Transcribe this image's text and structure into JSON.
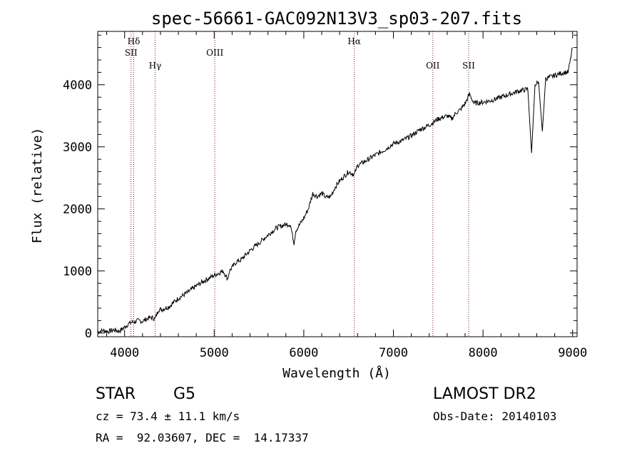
{
  "chart_data": {
    "type": "line",
    "title": "spec-56661-GAC092N13V3_sp03-207.fits",
    "xlabel": "Wavelength (Å)",
    "ylabel": "Flux (relative)",
    "xlim": [
      3700,
      9050
    ],
    "ylim": [
      -60,
      4860
    ],
    "xticks": [
      4000,
      5000,
      6000,
      7000,
      8000,
      9000
    ],
    "yticks": [
      0,
      1000,
      2000,
      3000,
      4000
    ],
    "grid": false,
    "line_color": "#000000",
    "marker_color": "#8b1a1a",
    "spectral_lines": [
      {
        "label": "Hδ",
        "x": 4102,
        "level": 1
      },
      {
        "label": "SII",
        "x": 4072,
        "level": 2
      },
      {
        "label": "Hγ",
        "x": 4340,
        "level": 3
      },
      {
        "label": "OIII",
        "x": 5007,
        "level": 2
      },
      {
        "label": "Hα",
        "x": 6563,
        "level": 1
      },
      {
        "label": "OII",
        "x": 7440,
        "level": 3
      },
      {
        "label": "SII",
        "x": 7840,
        "level": 3
      }
    ],
    "series": [
      {
        "points": [
          [
            3700,
            20
          ],
          [
            3760,
            40
          ],
          [
            3820,
            25
          ],
          [
            3880,
            50
          ],
          [
            3940,
            30
          ],
          [
            3980,
            70
          ],
          [
            4020,
            120
          ],
          [
            4070,
            170
          ],
          [
            4110,
            180
          ],
          [
            4150,
            200
          ],
          [
            4200,
            190
          ],
          [
            4250,
            230
          ],
          [
            4300,
            250
          ],
          [
            4340,
            230
          ],
          [
            4380,
            380
          ],
          [
            4420,
            380
          ],
          [
            4500,
            430
          ],
          [
            4600,
            560
          ],
          [
            4700,
            650
          ],
          [
            4800,
            760
          ],
          [
            4900,
            850
          ],
          [
            5000,
            930
          ],
          [
            5100,
            1000
          ],
          [
            5150,
            870
          ],
          [
            5170,
            1000
          ],
          [
            5250,
            1150
          ],
          [
            5300,
            1180
          ],
          [
            5400,
            1330
          ],
          [
            5500,
            1450
          ],
          [
            5600,
            1580
          ],
          [
            5700,
            1700
          ],
          [
            5800,
            1750
          ],
          [
            5850,
            1750
          ],
          [
            5890,
            1450
          ],
          [
            5910,
            1650
          ],
          [
            6000,
            1850
          ],
          [
            6050,
            2000
          ],
          [
            6100,
            2250
          ],
          [
            6150,
            2200
          ],
          [
            6200,
            2250
          ],
          [
            6250,
            2180
          ],
          [
            6300,
            2200
          ],
          [
            6350,
            2350
          ],
          [
            6400,
            2450
          ],
          [
            6500,
            2600
          ],
          [
            6563,
            2550
          ],
          [
            6600,
            2700
          ],
          [
            6700,
            2780
          ],
          [
            6800,
            2870
          ],
          [
            6900,
            2950
          ],
          [
            7000,
            3050
          ],
          [
            7100,
            3100
          ],
          [
            7200,
            3180
          ],
          [
            7300,
            3280
          ],
          [
            7400,
            3350
          ],
          [
            7500,
            3450
          ],
          [
            7600,
            3500
          ],
          [
            7650,
            3450
          ],
          [
            7700,
            3550
          ],
          [
            7750,
            3600
          ],
          [
            7800,
            3700
          ],
          [
            7850,
            3850
          ],
          [
            7900,
            3700
          ],
          [
            8000,
            3720
          ],
          [
            8100,
            3750
          ],
          [
            8200,
            3800
          ],
          [
            8300,
            3850
          ],
          [
            8400,
            3900
          ],
          [
            8500,
            3930
          ],
          [
            8542,
            2900
          ],
          [
            8580,
            4000
          ],
          [
            8620,
            4050
          ],
          [
            8662,
            3250
          ],
          [
            8700,
            4100
          ],
          [
            8800,
            4150
          ],
          [
            8900,
            4200
          ],
          [
            8950,
            4200
          ],
          [
            9000,
            4600
          ]
        ]
      }
    ]
  },
  "info": {
    "object_type": "STAR",
    "subclass": "G5",
    "survey": "LAMOST DR2",
    "redshift": "cz = 73.4 ± 11.1 km/s",
    "obs_date": "Obs-Date: 20140103",
    "coords": "RA =  92.03607, DEC =  14.17337"
  }
}
